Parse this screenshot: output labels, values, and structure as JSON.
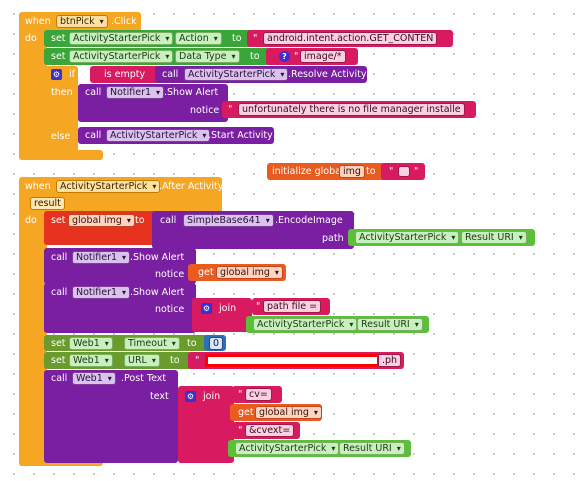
{
  "event1": {
    "when": "when",
    "component": "btnPick",
    "event": ".Click",
    "do": "do",
    "set1": {
      "set": "set",
      "component": "ActivityStarterPick",
      "prop": "Action",
      "to": "to",
      "value": "android.intent.action.GET_CONTEN",
      "quote_l": "\"",
      "quote_r": "\""
    },
    "set2": {
      "set": "set",
      "component": "ActivityStarterPick",
      "prop": "Data Type",
      "to": "to",
      "value": "image/*",
      "quote_l": "\"",
      "quote_r": "\"",
      "q": "?"
    },
    "if": {
      "if": "if",
      "is_empty": "is empty",
      "call": "call",
      "component": "ActivityStarterPick",
      "method": ".Resolve Activity",
      "then": "then",
      "else": "else"
    },
    "alert": {
      "call": "call",
      "component": "Notifier1",
      "method": ".Show Alert",
      "notice": "notice",
      "value": "unfortunately there is no file manager installe",
      "quote_l": "\"",
      "quote_r": "\""
    },
    "start": {
      "call": "call",
      "component": "ActivityStarterPick",
      "method": ".Start Activity"
    }
  },
  "global_init": {
    "label": "initialize global",
    "name": "img",
    "to": "to",
    "quote_l": "\"",
    "quote_r": "\""
  },
  "event2": {
    "when": "when",
    "component": "ActivityStarterPick",
    "event": ".After Activity",
    "result": "result",
    "do": "do",
    "set_img": {
      "set": "set",
      "global": "global img",
      "to": "to",
      "call": "call",
      "component": "SimpleBase641",
      "method": ".EncodeImage",
      "path": "path",
      "arg_component": "ActivityStarterPick",
      "arg_prop": "Result URI"
    },
    "alert1": {
      "call": "call",
      "component": "Notifier1",
      "method": ".Show Alert",
      "notice": "notice",
      "get": "get",
      "global": "global img"
    },
    "alert2": {
      "call": "call",
      "component": "Notifier1",
      "method": ".Show Alert",
      "notice": "notice",
      "join": "join",
      "str": "path file = ",
      "quote_l": "\"",
      "quote_r": "\"",
      "arg_component": "ActivityStarterPick",
      "arg_prop": "Result URI"
    },
    "timeout": {
      "set": "set",
      "component": "Web1",
      "prop": "Timeout",
      "to": "to",
      "value": "0"
    },
    "url": {
      "set": "set",
      "component": "Web1",
      "prop": "URL",
      "to": "to",
      "value_end": ".ph",
      "quote_l": "\"",
      "quote_r": "\""
    },
    "post": {
      "call": "call",
      "component": "Web1",
      "method": ".Post Text",
      "text": "text",
      "join": "join",
      "s1": "cv=",
      "get": "get",
      "global": "global img",
      "s2": "&cvext=",
      "quote_l": "\"",
      "quote_r": "\"",
      "arg_component": "ActivityStarterPick",
      "arg_prop": "Result URI"
    }
  }
}
